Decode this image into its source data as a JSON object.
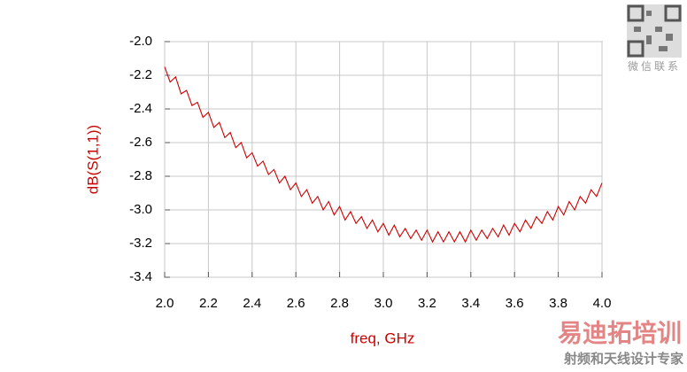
{
  "chart_data": {
    "type": "line",
    "xlabel": "freq, GHz",
    "ylabel": "dB(S(1,1))",
    "x": [
      2.0,
      2.025,
      2.05,
      2.075,
      2.1,
      2.125,
      2.15,
      2.175,
      2.2,
      2.225,
      2.25,
      2.275,
      2.3,
      2.325,
      2.35,
      2.375,
      2.4,
      2.425,
      2.45,
      2.475,
      2.5,
      2.525,
      2.55,
      2.575,
      2.6,
      2.625,
      2.65,
      2.675,
      2.7,
      2.725,
      2.75,
      2.775,
      2.8,
      2.825,
      2.85,
      2.875,
      2.9,
      2.925,
      2.95,
      2.975,
      3.0,
      3.025,
      3.05,
      3.075,
      3.1,
      3.125,
      3.15,
      3.175,
      3.2,
      3.225,
      3.25,
      3.275,
      3.3,
      3.325,
      3.35,
      3.375,
      3.4,
      3.425,
      3.45,
      3.475,
      3.5,
      3.525,
      3.55,
      3.575,
      3.6,
      3.625,
      3.65,
      3.675,
      3.7,
      3.725,
      3.75,
      3.775,
      3.8,
      3.825,
      3.85,
      3.875,
      3.9,
      3.925,
      3.95,
      3.975,
      4.0
    ],
    "series": [
      {
        "color": "#cc0000",
        "values": [
          -2.15,
          -2.24,
          -2.21,
          -2.31,
          -2.29,
          -2.38,
          -2.36,
          -2.45,
          -2.42,
          -2.51,
          -2.48,
          -2.57,
          -2.54,
          -2.63,
          -2.6,
          -2.69,
          -2.66,
          -2.74,
          -2.71,
          -2.79,
          -2.76,
          -2.84,
          -2.8,
          -2.88,
          -2.84,
          -2.92,
          -2.88,
          -2.96,
          -2.92,
          -3.0,
          -2.95,
          -3.03,
          -2.98,
          -3.06,
          -3.01,
          -3.08,
          -3.04,
          -3.11,
          -3.06,
          -3.13,
          -3.08,
          -3.15,
          -3.09,
          -3.16,
          -3.11,
          -3.17,
          -3.12,
          -3.18,
          -3.12,
          -3.19,
          -3.13,
          -3.19,
          -3.13,
          -3.19,
          -3.13,
          -3.19,
          -3.12,
          -3.18,
          -3.12,
          -3.17,
          -3.11,
          -3.16,
          -3.09,
          -3.15,
          -3.08,
          -3.13,
          -3.06,
          -3.11,
          -3.04,
          -3.08,
          -3.01,
          -3.06,
          -2.98,
          -3.03,
          -2.95,
          -3.0,
          -2.92,
          -2.96,
          -2.88,
          -2.92,
          -2.84
        ]
      }
    ],
    "xlim": [
      2.0,
      4.0
    ],
    "xticks": [
      {
        "value": 2.0,
        "label": "2.0"
      },
      2.2,
      2.4,
      2.6,
      2.8,
      {
        "value": 3.0,
        "label": "3.0"
      },
      3.2,
      3.4,
      3.6,
      3.8,
      {
        "value": 4.0,
        "label": "4.0"
      }
    ],
    "ylim": [
      -3.4,
      -2.0
    ],
    "yticks": [
      {
        "value": -3.4,
        "label": "-3.4"
      },
      -3.2,
      {
        "value": -3.0,
        "label": "-3.0"
      },
      -2.8,
      -2.6,
      -2.4,
      -2.2,
      {
        "value": -2.0,
        "label": "-2.0"
      }
    ],
    "grid": true
  },
  "watermark": {
    "qr_caption": "微信联系",
    "brand": "易迪拓培训",
    "tagline": "射频和天线设计专家"
  }
}
